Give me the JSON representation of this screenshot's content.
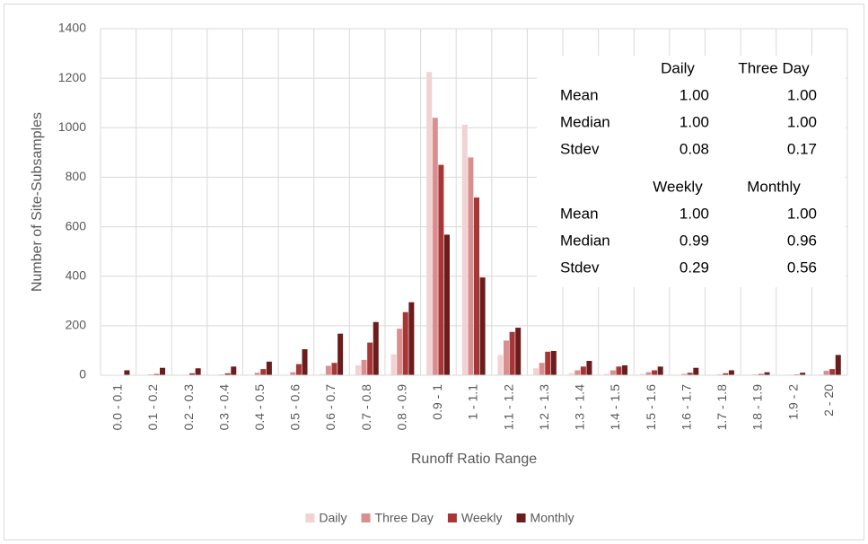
{
  "chart_data": {
    "type": "bar",
    "x_label": "Runoff Ratio Range",
    "y_label": "Number of Site-Subsamples",
    "categories": [
      "0.0 - 0.1",
      "0.1 - 0.2",
      "0.2 - 0.3",
      "0.3 - 0.4",
      "0.4 - 0.5",
      "0.5 - 0.6",
      "0.6 - 0.7",
      "0.7 - 0.8",
      "0.8 - 0.9",
      "0.9 - 1",
      "1 - 1.1",
      "1.1 - 1.2",
      "1.2 - 1.3",
      "1.3 - 1.4",
      "1.4 - 1.5",
      "1.5 - 1.6",
      "1.6 - 1.7",
      "1.7 - 1.8",
      "1.8 - 1.9",
      "1.9 - 2",
      "2 - 20"
    ],
    "series": [
      {
        "name": "Daily",
        "color": "#f2d3d3",
        "values": [
          0,
          0,
          0,
          0,
          0,
          2,
          5,
          40,
          85,
          1225,
          1012,
          82,
          28,
          8,
          5,
          5,
          2,
          2,
          2,
          0,
          3
        ]
      },
      {
        "name": "Three Day",
        "color": "#d98f8f",
        "values": [
          0,
          3,
          2,
          3,
          10,
          12,
          38,
          62,
          188,
          1040,
          880,
          140,
          50,
          20,
          20,
          12,
          5,
          3,
          3,
          2,
          18
        ]
      },
      {
        "name": "Weekly",
        "color": "#a83636",
        "values": [
          0,
          5,
          8,
          8,
          25,
          45,
          50,
          132,
          255,
          850,
          718,
          175,
          95,
          35,
          35,
          20,
          10,
          8,
          5,
          3,
          25
        ]
      },
      {
        "name": "Monthly",
        "color": "#6b1c1c",
        "values": [
          20,
          30,
          28,
          35,
          55,
          105,
          168,
          215,
          295,
          568,
          395,
          192,
          98,
          58,
          40,
          35,
          30,
          20,
          12,
          10,
          82
        ]
      }
    ],
    "ylim": [
      0,
      1400
    ],
    "yticks": [
      0,
      200,
      400,
      600,
      800,
      1000,
      1200,
      1400
    ],
    "grid": true,
    "legend": "bottom",
    "stats_tables": [
      {
        "columns": [
          "Daily",
          "Three Day"
        ],
        "rows": [
          {
            "label": "Mean",
            "values": [
              "1.00",
              "1.00"
            ]
          },
          {
            "label": "Median",
            "values": [
              "1.00",
              "1.00"
            ]
          },
          {
            "label": "Stdev",
            "values": [
              "0.08",
              "0.17"
            ]
          }
        ]
      },
      {
        "columns": [
          "Weekly",
          "Monthly"
        ],
        "rows": [
          {
            "label": "Mean",
            "values": [
              "1.00",
              "1.00"
            ]
          },
          {
            "label": "Median",
            "values": [
              "0.99",
              "0.96"
            ]
          },
          {
            "label": "Stdev",
            "values": [
              "0.29",
              "0.56"
            ]
          }
        ]
      }
    ]
  }
}
